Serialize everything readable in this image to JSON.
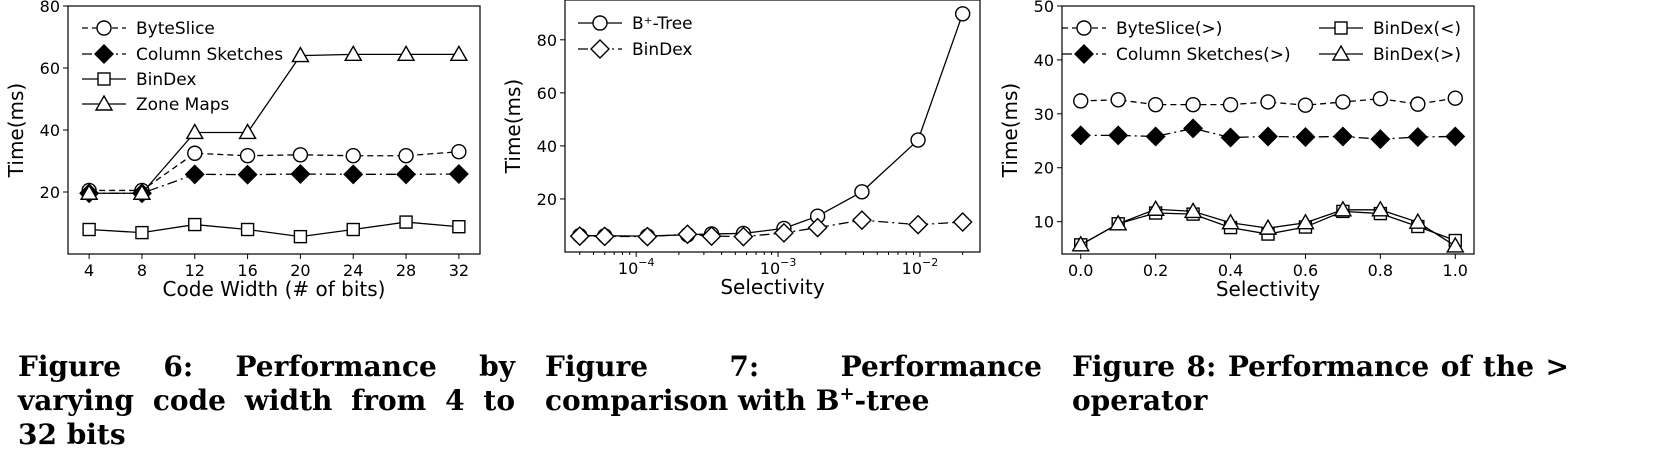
{
  "chart_data": [
    {
      "type": "line",
      "xlabel": "Code Width (# of bits)",
      "ylabel": "Time(ms)",
      "x": [
        4,
        8,
        12,
        16,
        20,
        24,
        28,
        32
      ],
      "xticks": [
        "4",
        "8",
        "12",
        "16",
        "20",
        "24",
        "28",
        "32"
      ],
      "ylim": [
        0,
        80
      ],
      "yticks": [
        "20",
        "40",
        "60",
        "80"
      ],
      "legend_position": "upper-left",
      "series": [
        {
          "name": "ByteSlice",
          "marker": "circle",
          "fill": "#ffffff",
          "dash": "dashed",
          "values": [
            20.5,
            20.5,
            32.5,
            31.7,
            32.0,
            31.7,
            31.7,
            33.0
          ]
        },
        {
          "name": "Column Sketches",
          "marker": "diamond",
          "fill": "#000000",
          "dash": "dashdot",
          "values": [
            19.6,
            19.6,
            25.7,
            25.6,
            25.8,
            25.7,
            25.7,
            25.8
          ]
        },
        {
          "name": "BinDex",
          "marker": "square",
          "fill": "#ffffff",
          "dash": "solid",
          "values": [
            7.9,
            6.9,
            9.5,
            7.9,
            5.6,
            7.9,
            10.3,
            8.8
          ]
        },
        {
          "name": "Zone Maps",
          "marker": "triangle",
          "fill": "#ffffff",
          "dash": "solid",
          "values": [
            19.6,
            19.6,
            39.2,
            39.2,
            64.0,
            64.4,
            64.4,
            64.4
          ]
        }
      ]
    },
    {
      "type": "line",
      "xlabel": "Selectivity",
      "ylabel": "Time(ms)",
      "xscale": "log",
      "x": [
        4e-05,
        6e-05,
        0.00012,
        0.00023,
        0.00034,
        0.00057,
        0.0011,
        0.0019,
        0.0039,
        0.0097,
        0.02
      ],
      "xticks": [
        {
          "value": 0.0001,
          "base": "10",
          "exp": "−4"
        },
        {
          "value": 0.001,
          "base": "10",
          "exp": "−3"
        },
        {
          "value": 0.01,
          "base": "10",
          "exp": "−2"
        }
      ],
      "ylim": [
        0,
        95
      ],
      "yticks": [
        "20",
        "40",
        "60",
        "80"
      ],
      "legend_position": "upper-left",
      "series": [
        {
          "name": "B⁺-Tree",
          "marker": "circle",
          "fill": "#ffffff",
          "dash": "solid",
          "values": [
            6.2,
            6.1,
            6.0,
            6.5,
            6.8,
            7.0,
            8.9,
            13.5,
            22.7,
            42.2,
            89.8
          ]
        },
        {
          "name": "BinDex",
          "marker": "diamond",
          "fill": "#ffffff",
          "dash": "dashdot",
          "values": [
            6.0,
            5.9,
            5.8,
            6.7,
            6.0,
            5.8,
            7.2,
            9.2,
            12.0,
            10.3,
            11.3
          ]
        }
      ]
    },
    {
      "type": "line",
      "xlabel": "Selectivity",
      "ylabel": "Time(ms)",
      "x": [
        0.0,
        0.1,
        0.2,
        0.3,
        0.4,
        0.5,
        0.6,
        0.7,
        0.8,
        0.9,
        1.0
      ],
      "xticks": [
        "0.0",
        "0.2",
        "0.4",
        "0.6",
        "0.8",
        "1.0"
      ],
      "ylim": [
        4,
        50
      ],
      "yticks": [
        "10",
        "20",
        "30",
        "40",
        "50"
      ],
      "legend_position": "top",
      "series": [
        {
          "name": "ByteSlice(>)",
          "marker": "circle",
          "fill": "#ffffff",
          "dash": "dashed",
          "values": [
            32.4,
            32.6,
            31.7,
            31.7,
            31.7,
            32.2,
            31.6,
            32.2,
            32.8,
            31.8,
            32.9
          ]
        },
        {
          "name": "Column Sketches(>)",
          "marker": "diamond",
          "fill": "#000000",
          "dash": "dashdot",
          "values": [
            26.0,
            26.0,
            25.8,
            27.3,
            25.6,
            25.8,
            25.7,
            25.8,
            25.3,
            25.7,
            25.8
          ]
        },
        {
          "name": "BinDex(<)",
          "marker": "square",
          "fill": "#ffffff",
          "dash": "solid",
          "values": [
            5.7,
            9.6,
            11.6,
            11.4,
            8.9,
            7.7,
            9.0,
            11.9,
            11.5,
            9.1,
            6.5
          ]
        },
        {
          "name": "BinDex(>)",
          "marker": "triangle",
          "fill": "#ffffff",
          "dash": "solid",
          "values": [
            5.7,
            9.6,
            12.3,
            11.9,
            9.8,
            8.8,
            9.8,
            12.2,
            12.2,
            9.9,
            5.5
          ]
        }
      ]
    }
  ],
  "captions": [
    {
      "label": "Figure 6:",
      "text": "Performance by varying code width from 4 to 32 bits"
    },
    {
      "label": "Figure 7:",
      "text_before": "Performance comparison with B",
      "sup": "+",
      "text_after": "-tree"
    },
    {
      "label": "Figure 8:",
      "text": "Performance of the > operator"
    }
  ]
}
